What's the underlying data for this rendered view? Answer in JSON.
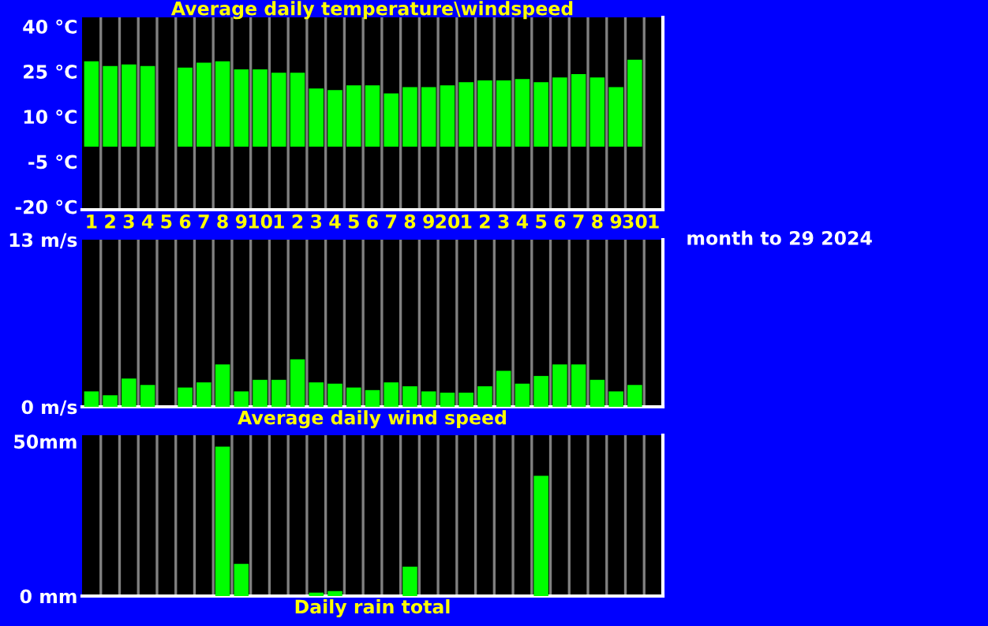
{
  "chart_data": [
    {
      "type": "bar",
      "title": "Average daily temperature\\windspeed",
      "categories": [
        "1",
        "2",
        "3",
        "4",
        "5",
        "6",
        "7",
        "8",
        "9",
        "10",
        "1",
        "2",
        "3",
        "4",
        "5",
        "6",
        "7",
        "8",
        "9",
        "20",
        "1",
        "2",
        "3",
        "4",
        "5",
        "6",
        "7",
        "8",
        "9",
        "30",
        "1"
      ],
      "series": [
        {
          "color": "#00ff00",
          "values": [
            28.4,
            26.8,
            27.3,
            26.8,
            null,
            26.3,
            27.9,
            28.4,
            25.7,
            25.7,
            24.6,
            24.6,
            19.3,
            18.8,
            20.4,
            20.4,
            17.7,
            19.8,
            19.8,
            20.4,
            21.4,
            22.0,
            22.0,
            22.5,
            21.4,
            23.0,
            24.1,
            23.0,
            19.8,
            28.9,
            null
          ]
        }
      ],
      "ylim": [
        -21,
        43
      ],
      "yticks": [
        {
          "value": -20,
          "label": "-20 °C"
        },
        {
          "value": -5,
          "label": "-5 °C"
        },
        {
          "value": 10,
          "label": "10 °C"
        },
        {
          "value": 25,
          "label": "25 °C"
        },
        {
          "value": 40,
          "label": "40 °C"
        }
      ],
      "grid": "x"
    },
    {
      "type": "bar",
      "title": "Average daily wind speed",
      "categories": [
        "1",
        "2",
        "3",
        "4",
        "5",
        "6",
        "7",
        "8",
        "9",
        "10",
        "1",
        "2",
        "3",
        "4",
        "5",
        "6",
        "7",
        "8",
        "9",
        "20",
        "1",
        "2",
        "3",
        "4",
        "5",
        "6",
        "7",
        "8",
        "9",
        "30",
        "1"
      ],
      "series": [
        {
          "color": "#00ff00",
          "values": [
            1.2,
            0.9,
            2.2,
            1.7,
            null,
            1.5,
            1.9,
            3.3,
            1.2,
            2.1,
            2.1,
            3.7,
            1.9,
            1.8,
            1.5,
            1.3,
            1.9,
            1.6,
            1.2,
            1.1,
            1.1,
            1.6,
            2.8,
            1.8,
            2.4,
            3.3,
            3.3,
            2.1,
            1.2,
            1.7,
            null
          ]
        }
      ],
      "ylim": [
        0,
        13
      ],
      "yticks": [
        {
          "value": 0,
          "label": "0 m/s"
        },
        {
          "value": 13,
          "label": "13 m/s"
        }
      ],
      "tick_labels": "y",
      "grid": "x",
      "annotations": [
        "month to 29 2024"
      ]
    },
    {
      "type": "bar",
      "title": "Daily rain total",
      "categories": [
        "1",
        "2",
        "3",
        "4",
        "5",
        "6",
        "7",
        "8",
        "9",
        "10",
        "1",
        "2",
        "3",
        "4",
        "5",
        "6",
        "7",
        "8",
        "9",
        "20",
        "1",
        "2",
        "3",
        "4",
        "5",
        "6",
        "7",
        "8",
        "9",
        "30",
        "1"
      ],
      "series": [
        {
          "color": "#00ff00",
          "values": [
            0,
            0,
            0,
            0,
            0,
            0,
            0,
            48.3,
            10.4,
            0,
            0,
            0,
            1.1,
            1.6,
            0,
            0,
            0,
            9.5,
            0,
            0,
            0,
            0,
            0,
            0,
            38.9,
            0,
            0,
            0,
            0,
            0,
            0
          ]
        }
      ],
      "ylim": [
        0,
        52
      ],
      "yticks": [
        {
          "value": 0,
          "label": "0 mm"
        },
        {
          "value": 50,
          "label": "50mm"
        }
      ],
      "tick_labels": "y",
      "grid": "x"
    }
  ]
}
